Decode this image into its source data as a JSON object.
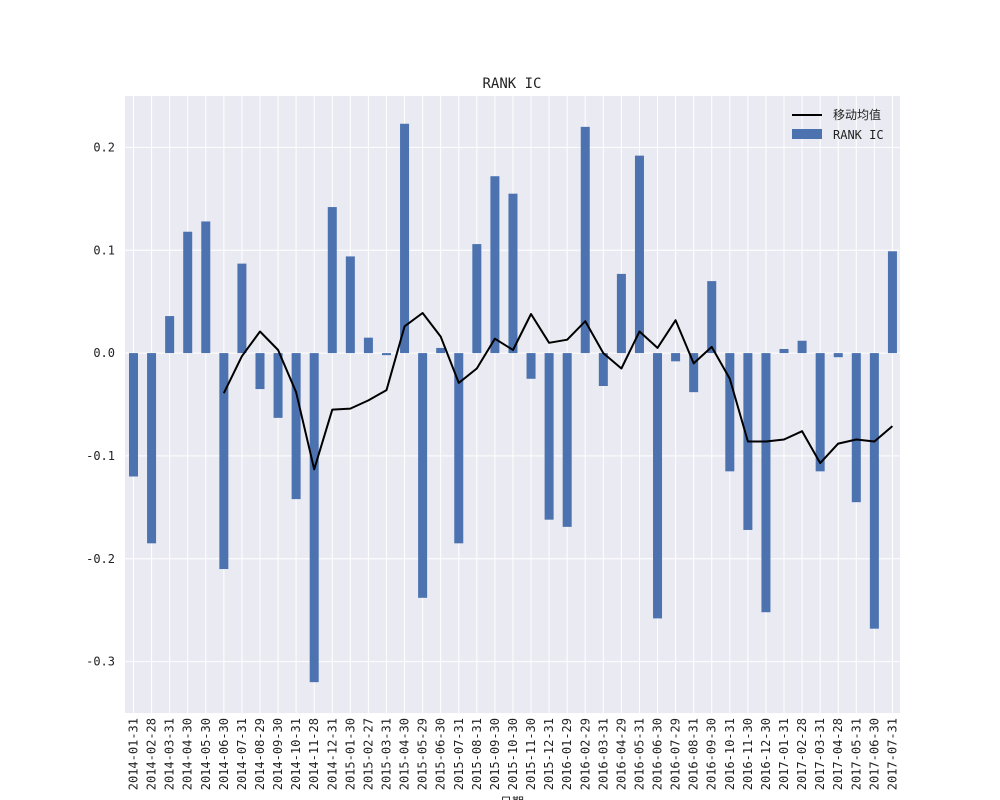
{
  "chart_data": {
    "type": "bar",
    "title": "RANK IC",
    "xlabel": "日期",
    "ylabel": "",
    "ylim": [
      -0.35,
      0.25
    ],
    "yticks": [
      -0.3,
      -0.2,
      -0.1,
      0.0,
      0.1,
      0.2
    ],
    "ytick_labels": [
      "-0.3",
      "-0.2",
      "-0.1",
      "0.0",
      "0.1",
      "0.2"
    ],
    "grid": true,
    "legend_position": "top-right",
    "colors": {
      "background": "#eaeaf2",
      "bar": "#4c72b0",
      "line": "#000000",
      "grid": "#ffffff"
    },
    "categories": [
      "2014-01-31",
      "2014-02-28",
      "2014-03-31",
      "2014-04-30",
      "2014-05-30",
      "2014-06-30",
      "2014-07-31",
      "2014-08-29",
      "2014-09-30",
      "2014-10-31",
      "2014-11-28",
      "2014-12-31",
      "2015-01-30",
      "2015-02-27",
      "2015-03-31",
      "2015-04-30",
      "2015-05-29",
      "2015-06-30",
      "2015-07-31",
      "2015-08-31",
      "2015-09-30",
      "2015-10-30",
      "2015-11-30",
      "2015-12-31",
      "2016-01-29",
      "2016-02-29",
      "2016-03-31",
      "2016-04-29",
      "2016-05-31",
      "2016-06-30",
      "2016-07-29",
      "2016-08-31",
      "2016-09-30",
      "2016-10-31",
      "2016-11-30",
      "2016-12-30",
      "2017-01-31",
      "2017-02-28",
      "2017-03-31",
      "2017-04-28",
      "2017-05-31",
      "2017-06-30",
      "2017-07-31"
    ],
    "series": [
      {
        "name": "RANK IC",
        "type": "bar",
        "values": [
          -0.12,
          -0.185,
          0.036,
          0.118,
          0.128,
          -0.21,
          0.087,
          -0.035,
          -0.063,
          -0.142,
          -0.32,
          0.142,
          0.094,
          0.015,
          -0.002,
          0.223,
          -0.238,
          0.005,
          -0.185,
          0.106,
          0.172,
          0.155,
          -0.025,
          -0.162,
          -0.169,
          0.22,
          -0.032,
          0.077,
          0.192,
          -0.258,
          -0.008,
          -0.038,
          0.07,
          -0.115,
          -0.172,
          -0.252,
          0.004,
          0.012,
          -0.115,
          -0.004,
          -0.145,
          -0.268,
          0.099
        ]
      },
      {
        "name": "移动均值",
        "type": "line",
        "values": [
          null,
          null,
          null,
          null,
          null,
          -0.039,
          -0.003,
          0.021,
          0.003,
          -0.038,
          -0.113,
          -0.055,
          -0.054,
          -0.046,
          -0.036,
          0.026,
          0.039,
          0.016,
          -0.029,
          -0.015,
          0.014,
          0.003,
          0.038,
          0.01,
          0.013,
          0.031,
          0.0,
          -0.015,
          0.021,
          0.005,
          0.032,
          -0.01,
          0.006,
          -0.025,
          -0.086,
          -0.086,
          -0.084,
          -0.076,
          -0.107,
          -0.088,
          -0.084,
          -0.086,
          -0.071
        ]
      }
    ]
  }
}
